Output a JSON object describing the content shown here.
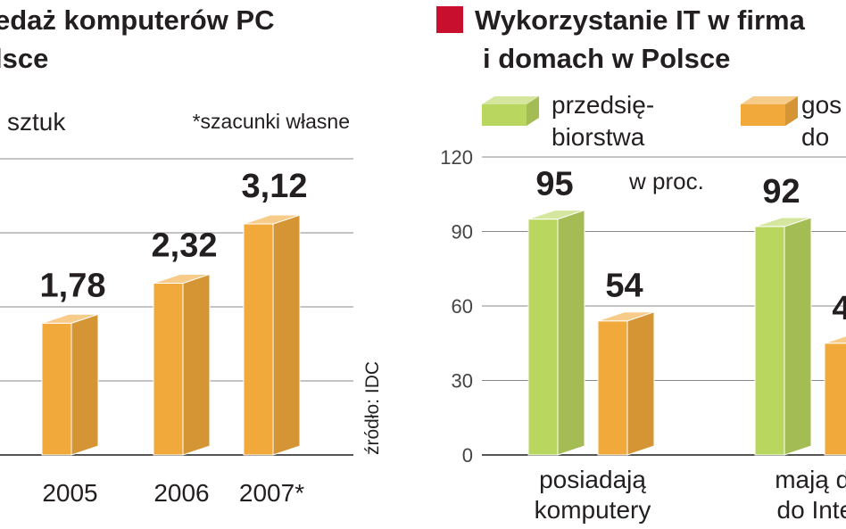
{
  "chart_data": [
    {
      "type": "bar",
      "title": [
        "edaż komputerów PC",
        "lsce"
      ],
      "unit_label": "sztuk",
      "note": "*szacunki własne",
      "source": "źródło: IDC",
      "categories": [
        "2005",
        "2006",
        "2007*"
      ],
      "values": [
        1.78,
        2.32,
        3.12
      ],
      "value_labels": [
        "1,78",
        "2,32",
        "3,12"
      ],
      "color": "#f2a93b",
      "ylim": [
        0,
        4
      ],
      "yticks": [
        0,
        1,
        2,
        3,
        4
      ],
      "grid": true
    },
    {
      "type": "bar",
      "title": [
        "Wykorzystanie IT w firma",
        "i domach w Polsce"
      ],
      "annotation": "w proc.",
      "categories": [
        "posiadają\nkomputery",
        "mają do\ndo Inter"
      ],
      "series": [
        {
          "name": "przedsię-\nbiorstwa",
          "color": "#b9d65e",
          "values": [
            95,
            92
          ]
        },
        {
          "name": "gos\ndo",
          "color": "#f2a93b",
          "values": [
            54,
            45
          ]
        }
      ],
      "ylim": [
        0,
        120
      ],
      "yticks": [
        0,
        30,
        60,
        90,
        120
      ],
      "grid": true
    }
  ]
}
